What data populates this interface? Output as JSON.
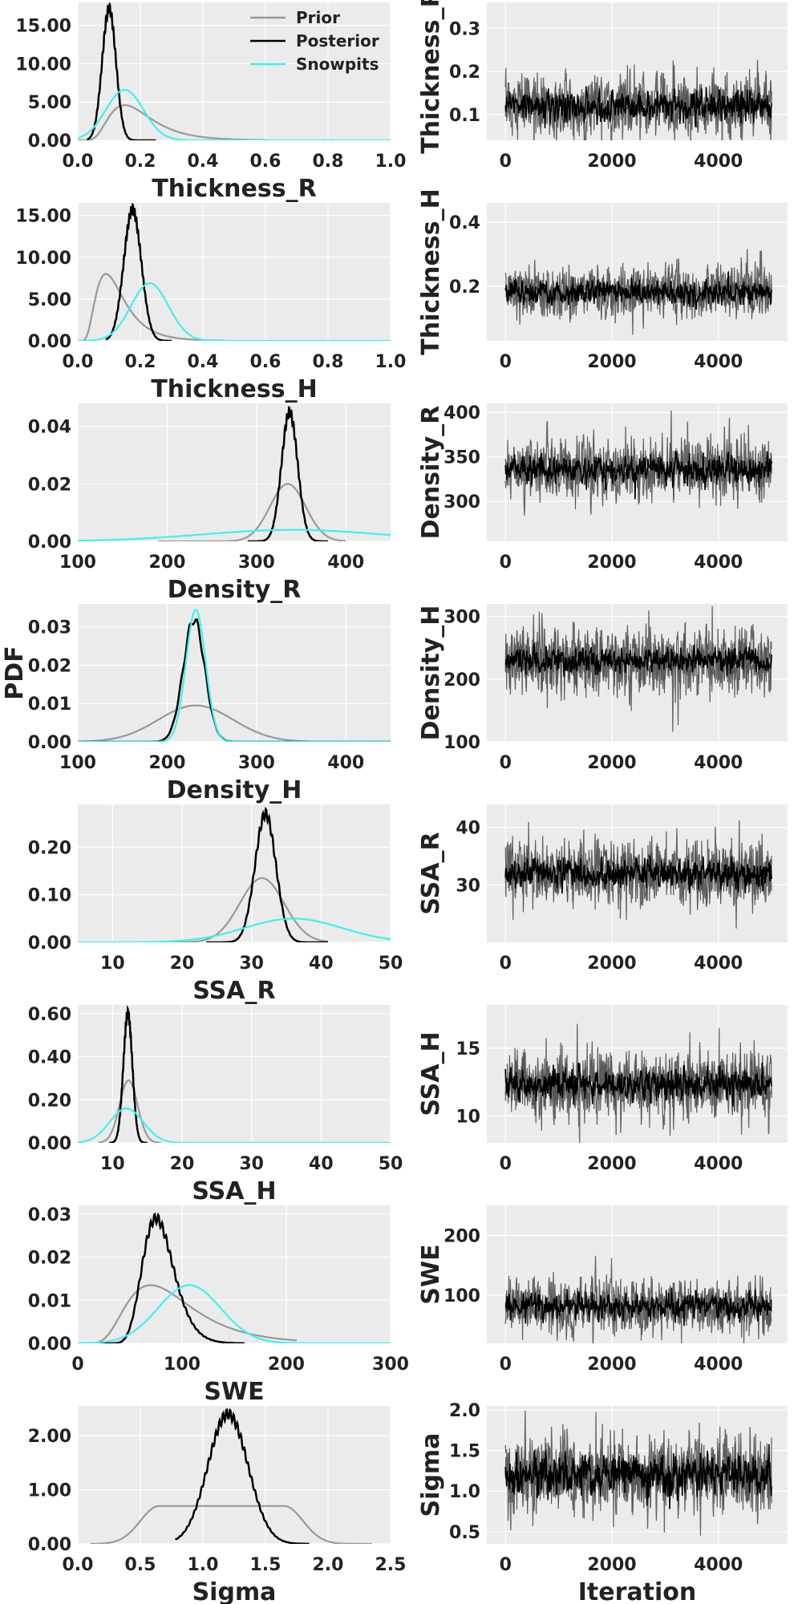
{
  "figure": {
    "legend": {
      "placement": "top-right of first density panel",
      "entries": [
        {
          "name": "Prior",
          "color": "#999999"
        },
        {
          "name": "Posterior",
          "color": "#000000"
        },
        {
          "name": "Snowpits",
          "color": "#3ff0f0"
        }
      ]
    },
    "shared_ylabel": "PDF",
    "trace_xlabel": "Iteration",
    "background": "#ebebeb",
    "grid": true
  },
  "chart_data": [
    {
      "type": "line",
      "panel": "density",
      "xlabel": "Thickness_R",
      "xlim": [
        0,
        1.0
      ],
      "ylim": [
        0,
        18
      ],
      "xticks": [
        "0.0",
        "0.2",
        "0.4",
        "0.6",
        "0.8",
        "1.0"
      ],
      "yticks": [
        "0.00",
        "5.00",
        "10.00",
        "15.00"
      ],
      "series": [
        {
          "name": "Prior",
          "dist": "lognormal",
          "mode": 0.15,
          "sigma": 0.45,
          "peak": 4.6,
          "range": [
            0.0,
            0.6
          ]
        },
        {
          "name": "Posterior",
          "dist": "gauss",
          "mu": 0.1,
          "sd": 0.022,
          "peak": 17.2,
          "range": [
            0.03,
            0.25
          ]
        },
        {
          "name": "Snowpits",
          "dist": "gauss",
          "mu": 0.15,
          "sd": 0.06,
          "peak": 6.6,
          "range": [
            0.0,
            1.0
          ]
        }
      ]
    },
    {
      "type": "line",
      "panel": "density",
      "xlabel": "Thickness_H",
      "xlim": [
        0,
        1.0
      ],
      "ylim": [
        0,
        16.5
      ],
      "xticks": [
        "0.0",
        "0.2",
        "0.4",
        "0.6",
        "0.8",
        "1.0"
      ],
      "yticks": [
        "0.00",
        "5.00",
        "10.00",
        "15.00"
      ],
      "series": [
        {
          "name": "Prior",
          "dist": "lognormal",
          "mode": 0.09,
          "sigma": 0.5,
          "peak": 8.0,
          "range": [
            0.0,
            0.47
          ]
        },
        {
          "name": "Posterior",
          "dist": "gauss",
          "mu": 0.175,
          "sd": 0.028,
          "peak": 15.7,
          "range": [
            0.09,
            0.3
          ]
        },
        {
          "name": "Snowpits",
          "dist": "gauss",
          "mu": 0.23,
          "sd": 0.06,
          "peak": 6.9,
          "range": [
            0.0,
            1.0
          ]
        }
      ]
    },
    {
      "type": "line",
      "panel": "density",
      "xlabel": "Density_R",
      "xlim": [
        100,
        450
      ],
      "ylim": [
        0,
        0.048
      ],
      "xticks": [
        "100",
        "200",
        "300",
        "400"
      ],
      "yticks": [
        "0.00",
        "0.02",
        "0.04"
      ],
      "series": [
        {
          "name": "Prior",
          "dist": "gauss",
          "mu": 335,
          "sd": 20,
          "peak": 0.02,
          "range": [
            190,
            400
          ]
        },
        {
          "name": "Posterior",
          "dist": "gauss",
          "mu": 337,
          "sd": 9,
          "peak": 0.045,
          "range": [
            290,
            380
          ]
        },
        {
          "name": "Snowpits",
          "dist": "gauss",
          "mu": 340,
          "sd": 100,
          "peak": 0.004,
          "range": [
            100,
            450
          ]
        }
      ]
    },
    {
      "type": "line",
      "panel": "density",
      "xlabel": "Density_H",
      "ylabel": "PDF",
      "xlim": [
        100,
        450
      ],
      "ylim": [
        0,
        0.036
      ],
      "xticks": [
        "100",
        "200",
        "300",
        "400"
      ],
      "yticks": [
        "0.00",
        "0.01",
        "0.02",
        "0.03"
      ],
      "series": [
        {
          "name": "Prior",
          "dist": "gauss",
          "mu": 232,
          "sd": 42,
          "peak": 0.0095,
          "range": [
            100,
            450
          ]
        },
        {
          "name": "Posterior",
          "dist": "gauss",
          "mu": 230,
          "sd": 12,
          "peak": 0.032,
          "range": [
            100,
            450
          ]
        },
        {
          "name": "Snowpits",
          "dist": "gauss",
          "mu": 232,
          "sd": 11,
          "peak": 0.0345,
          "range": [
            100,
            450
          ]
        }
      ]
    },
    {
      "type": "line",
      "panel": "density",
      "xlabel": "SSA_R",
      "xlim": [
        5,
        50
      ],
      "ylim": [
        0,
        0.29
      ],
      "xticks": [
        "10",
        "20",
        "30",
        "40",
        "50"
      ],
      "yticks": [
        "0.00",
        "0.10",
        "0.20"
      ],
      "series": [
        {
          "name": "Prior",
          "dist": "gauss",
          "mu": 31.5,
          "sd": 3.2,
          "peak": 0.135,
          "range": [
            14,
            41
          ]
        },
        {
          "name": "Posterior",
          "dist": "gauss",
          "mu": 32,
          "sd": 1.5,
          "peak": 0.27,
          "range": [
            23.5,
            41
          ]
        },
        {
          "name": "Snowpits",
          "dist": "gauss",
          "mu": 36,
          "sd": 7,
          "peak": 0.05,
          "range": [
            5,
            50
          ]
        }
      ]
    },
    {
      "type": "line",
      "panel": "density",
      "xlabel": "SSA_H",
      "xlim": [
        5,
        50
      ],
      "ylim": [
        0,
        0.64
      ],
      "xticks": [
        "10",
        "20",
        "30",
        "40",
        "50"
      ],
      "yticks": [
        "0.00",
        "0.20",
        "0.40",
        "0.60"
      ],
      "series": [
        {
          "name": "Prior",
          "dist": "gauss",
          "mu": 12.3,
          "sd": 1.3,
          "peak": 0.29,
          "range": [
            8,
            17
          ]
        },
        {
          "name": "Posterior",
          "dist": "gauss",
          "mu": 12.2,
          "sd": 0.65,
          "peak": 0.6,
          "range": [
            9.5,
            15
          ]
        },
        {
          "name": "Snowpits",
          "dist": "gauss",
          "mu": 12,
          "sd": 2.4,
          "peak": 0.16,
          "range": [
            5,
            50
          ]
        }
      ]
    },
    {
      "type": "line",
      "panel": "density",
      "xlabel": "SWE",
      "xlim": [
        0,
        300
      ],
      "ylim": [
        0,
        0.032
      ],
      "xticks": [
        "0",
        "100",
        "200",
        "300"
      ],
      "yticks": [
        "0.00",
        "0.01",
        "0.02",
        "0.03"
      ],
      "series": [
        {
          "name": "Prior",
          "dist": "lognormal",
          "mode": 70,
          "sigma": 0.45,
          "peak": 0.0135,
          "range": [
            10,
            210
          ]
        },
        {
          "name": "Posterior",
          "dist": "lognormal",
          "mode": 75,
          "sigma": 0.2,
          "peak": 0.029,
          "range": [
            20,
            160
          ]
        },
        {
          "name": "Snowpits",
          "dist": "gauss",
          "mu": 107,
          "sd": 30,
          "peak": 0.0135,
          "range": [
            0,
            300
          ]
        }
      ]
    },
    {
      "type": "line",
      "panel": "density",
      "xlabel": "Sigma",
      "xlim": [
        0,
        2.5
      ],
      "ylim": [
        0,
        2.55
      ],
      "xticks": [
        "0.0",
        "0.5",
        "1.0",
        "1.5",
        "2.0",
        "2.5"
      ],
      "yticks": [
        "0.00",
        "1.00",
        "2.00"
      ],
      "series": [
        {
          "name": "Prior",
          "dist": "plateau",
          "center": 1.15,
          "halfwidth": 0.5,
          "edge": 0.15,
          "peak": 0.7,
          "range": [
            0.1,
            2.35
          ]
        },
        {
          "name": "Posterior",
          "dist": "gauss",
          "mu": 1.2,
          "sd": 0.16,
          "peak": 2.4,
          "range": [
            0.78,
            1.85
          ]
        },
        {
          "name": "Snowpits",
          "dist": "none"
        }
      ]
    },
    {
      "type": "line",
      "panel": "trace",
      "ylabel": "Thickness_R",
      "xlim": [
        -350,
        5300
      ],
      "ylim": [
        0.04,
        0.36
      ],
      "xticks": [
        "0",
        "2000",
        "4000"
      ],
      "yticks": [
        "0.1",
        "0.2",
        "0.3"
      ],
      "chains_mean": 0.12,
      "chains_spread": 0.045,
      "inner_mean": 0.12,
      "inner_spread": 0.02,
      "n_iterations": 5000
    },
    {
      "type": "line",
      "panel": "trace",
      "ylabel": "Thickness_H",
      "xlim": [
        -350,
        5300
      ],
      "ylim": [
        0.03,
        0.46
      ],
      "xticks": [
        "0",
        "2000",
        "4000"
      ],
      "yticks": [
        "0.2",
        "0.4"
      ],
      "chains_mean": 0.18,
      "chains_spread": 0.05,
      "inner_mean": 0.18,
      "inner_spread": 0.022,
      "n_iterations": 5000
    },
    {
      "type": "line",
      "panel": "trace",
      "ylabel": "Density_R",
      "xlim": [
        -350,
        5300
      ],
      "ylim": [
        255,
        410
      ],
      "xticks": [
        "0",
        "2000",
        "4000"
      ],
      "yticks": [
        "300",
        "350",
        "400"
      ],
      "chains_mean": 335,
      "chains_spread": 22,
      "inner_mean": 335,
      "inner_spread": 9,
      "n_iterations": 5000
    },
    {
      "type": "line",
      "panel": "trace",
      "ylabel": "Density_H",
      "xlim": [
        -350,
        5300
      ],
      "ylim": [
        100,
        320
      ],
      "xticks": [
        "0",
        "2000",
        "4000"
      ],
      "yticks": [
        "100",
        "200",
        "300"
      ],
      "chains_mean": 230,
      "chains_spread": 35,
      "inner_mean": 230,
      "inner_spread": 12,
      "n_iterations": 5000
    },
    {
      "type": "line",
      "panel": "trace",
      "ylabel": "SSA_R",
      "xlim": [
        -350,
        5300
      ],
      "ylim": [
        20,
        44
      ],
      "xticks": [
        "0",
        "2000",
        "4000"
      ],
      "yticks": [
        "30",
        "40"
      ],
      "chains_mean": 32,
      "chains_spread": 3.5,
      "inner_mean": 32,
      "inner_spread": 1.5,
      "n_iterations": 5000
    },
    {
      "type": "line",
      "panel": "trace",
      "ylabel": "SSA_H",
      "xlim": [
        -350,
        5300
      ],
      "ylim": [
        8,
        18.2
      ],
      "xticks": [
        "0",
        "2000",
        "4000"
      ],
      "yticks": [
        "10",
        "15"
      ],
      "chains_mean": 12.3,
      "chains_spread": 1.6,
      "inner_mean": 12.3,
      "inner_spread": 0.7,
      "n_iterations": 5000
    },
    {
      "type": "line",
      "panel": "trace",
      "ylabel": "SWE",
      "xlim": [
        -350,
        5300
      ],
      "ylim": [
        20,
        250
      ],
      "xticks": [
        "0",
        "2000",
        "4000"
      ],
      "yticks": [
        "100",
        "200"
      ],
      "chains_mean": 82,
      "chains_spread": 28,
      "inner_mean": 82,
      "inner_spread": 12,
      "n_iterations": 5000
    },
    {
      "type": "line",
      "panel": "trace",
      "ylabel": "Sigma",
      "xlabel": "Iteration",
      "xlim": [
        -350,
        5300
      ],
      "ylim": [
        0.35,
        2.05
      ],
      "xticks": [
        "0",
        "2000",
        "4000"
      ],
      "yticks": [
        "0.5",
        "1.0",
        "1.5",
        "2.0"
      ],
      "chains_mean": 1.2,
      "chains_spread": 0.3,
      "inner_mean": 1.2,
      "inner_spread": 0.15,
      "n_iterations": 5000
    }
  ]
}
